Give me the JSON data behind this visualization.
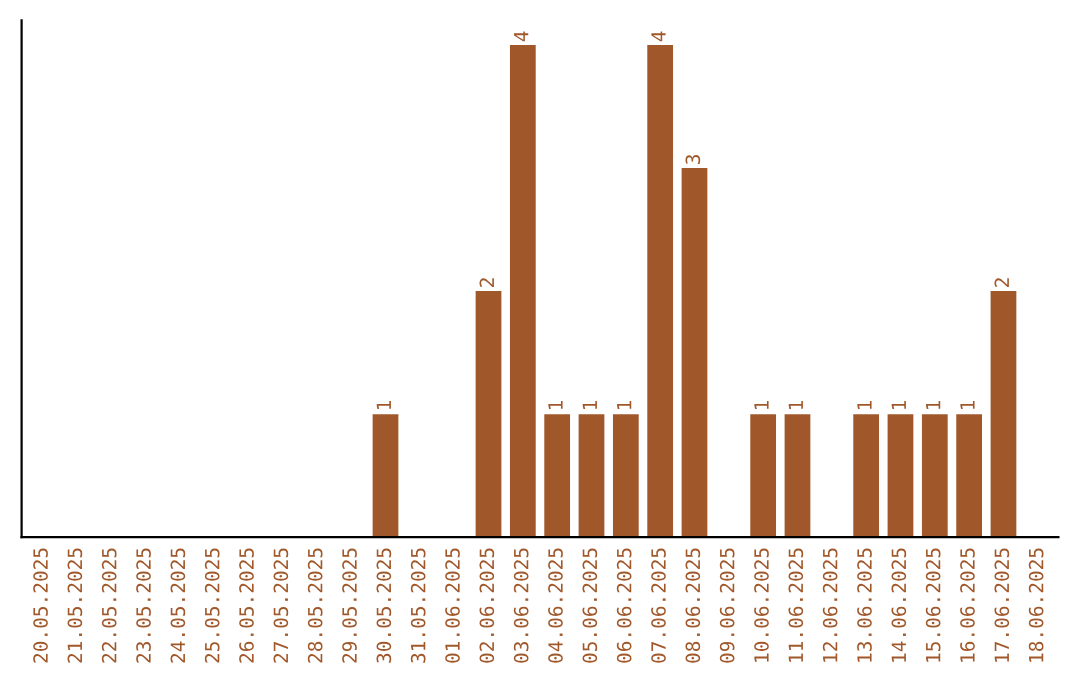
{
  "chart_data": {
    "type": "bar",
    "categories": [
      "20.05.2025",
      "21.05.2025",
      "22.05.2025",
      "23.05.2025",
      "24.05.2025",
      "25.05.2025",
      "26.05.2025",
      "27.05.2025",
      "28.05.2025",
      "29.05.2025",
      "30.05.2025",
      "31.05.2025",
      "01.06.2025",
      "02.06.2025",
      "03.06.2025",
      "04.06.2025",
      "05.06.2025",
      "06.06.2025",
      "07.06.2025",
      "08.06.2025",
      "09.06.2025",
      "10.06.2025",
      "11.06.2025",
      "12.06.2025",
      "13.06.2025",
      "14.06.2025",
      "15.06.2025",
      "16.06.2025",
      "17.06.2025",
      "18.06.2025"
    ],
    "values": [
      0,
      0,
      0,
      0,
      0,
      0,
      0,
      0,
      0,
      0,
      1,
      0,
      0,
      2,
      4,
      1,
      1,
      1,
      4,
      3,
      0,
      1,
      1,
      0,
      1,
      1,
      1,
      1,
      2,
      0
    ],
    "value_labels": [
      null,
      null,
      null,
      null,
      null,
      null,
      null,
      null,
      null,
      null,
      "1",
      null,
      null,
      "2",
      "4",
      "1",
      "1",
      "1",
      "4",
      "3",
      null,
      "1",
      "1",
      null,
      "1",
      "1",
      "1",
      "1",
      "2",
      null
    ],
    "color": "#a0582a",
    "tick_labels": "x",
    "grid": false
  }
}
